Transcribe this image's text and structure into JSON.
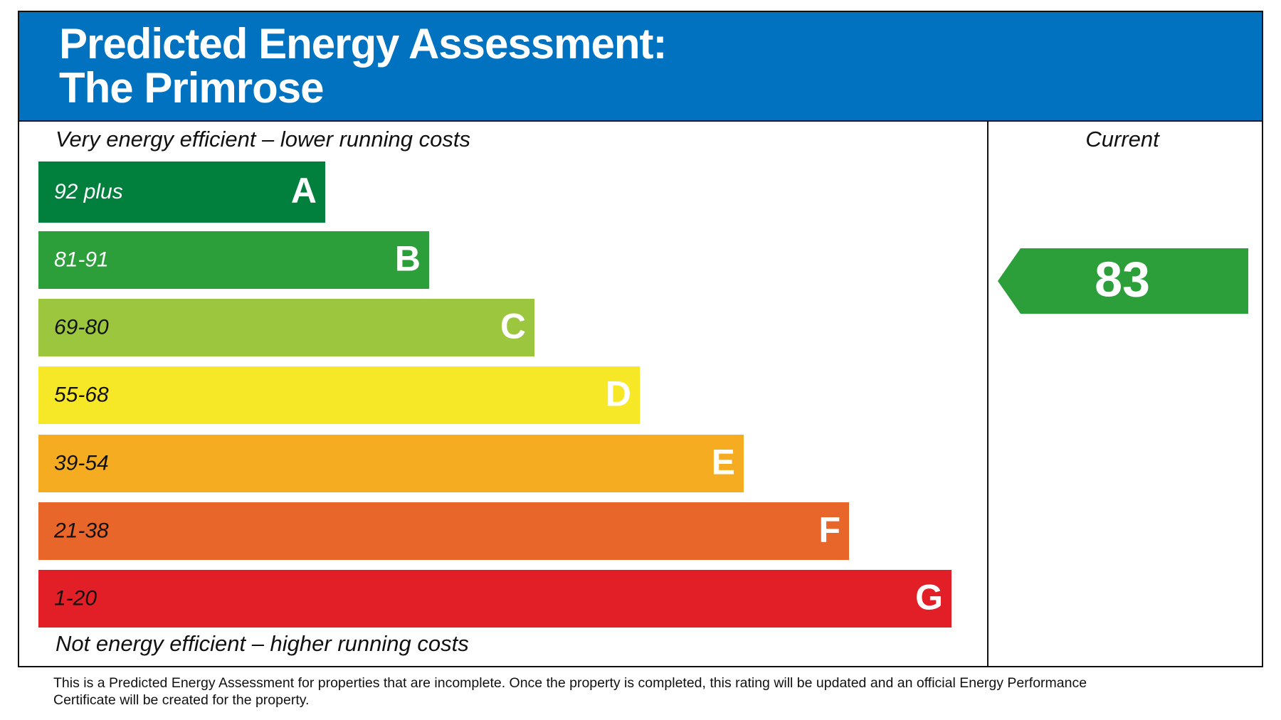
{
  "header": {
    "title_lines": [
      "Predicted Energy Assessment:",
      "The Primrose"
    ],
    "background": "#0072bf"
  },
  "scale": {
    "top_label": "Very energy efficient – lower running costs",
    "bottom_label": "Not energy efficient – higher running costs",
    "bands": [
      {
        "range": "92 plus",
        "letter": "A",
        "color": "#007f3d",
        "text_color": "#ffffff"
      },
      {
        "range": "81-91",
        "letter": "B",
        "color": "#2c9f3a",
        "text_color": "#ffffff"
      },
      {
        "range": "69-80",
        "letter": "C",
        "color": "#9dc63f",
        "text_color": "#111111"
      },
      {
        "range": "55-68",
        "letter": "D",
        "color": "#f7e827",
        "text_color": "#111111"
      },
      {
        "range": "39-54",
        "letter": "E",
        "color": "#f6ac20",
        "text_color": "#111111"
      },
      {
        "range": "21-38",
        "letter": "F",
        "color": "#e9662a",
        "text_color": "#111111"
      },
      {
        "range": "1-20",
        "letter": "G",
        "color": "#e21f26",
        "text_color": "#111111"
      }
    ]
  },
  "current": {
    "heading": "Current",
    "rating": "83",
    "color": "#2c9f3a"
  },
  "footnote": [
    "This is a Predicted Energy Assessment for properties that are incomplete. Once the property is completed, this rating will be updated and an official Energy Performance",
    "Certificate will be created for the property."
  ]
}
